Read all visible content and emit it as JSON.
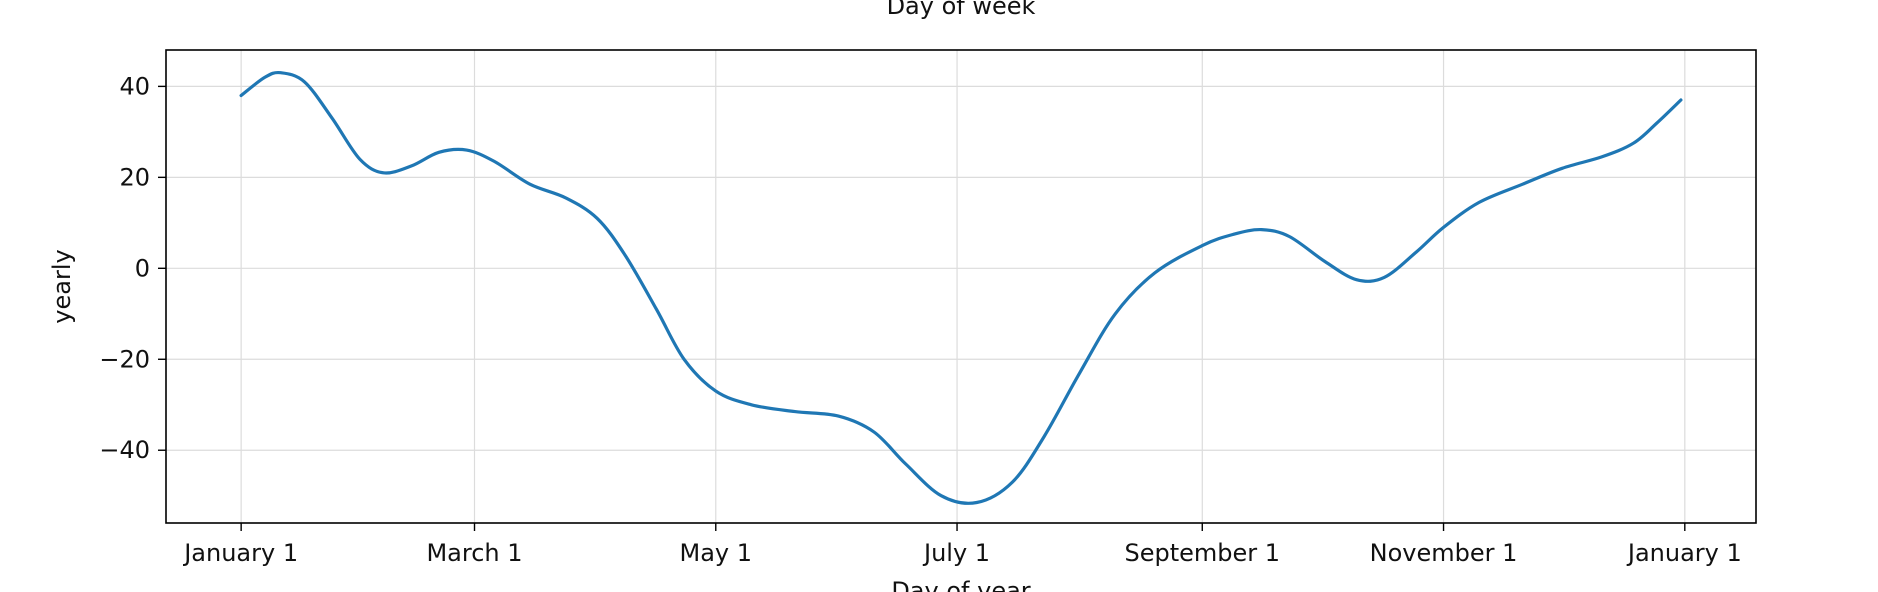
{
  "chart_data": {
    "type": "line",
    "title": "Day of week",
    "xlabel": "Day of year",
    "ylabel": "yearly",
    "ylim": [
      -56,
      48
    ],
    "xlim": [
      "2017-12-13",
      "2019-01-19"
    ],
    "grid": true,
    "x_ticks": [
      {
        "date": "2018-01-01",
        "label": "January 1"
      },
      {
        "date": "2018-03-01",
        "label": "March 1"
      },
      {
        "date": "2018-05-01",
        "label": "May 1"
      },
      {
        "date": "2018-07-01",
        "label": "July 1"
      },
      {
        "date": "2018-09-01",
        "label": "September 1"
      },
      {
        "date": "2018-11-01",
        "label": "November 1"
      },
      {
        "date": "2019-01-01",
        "label": "January 1"
      }
    ],
    "y_ticks": [
      {
        "value": 40,
        "label": "40"
      },
      {
        "value": 20,
        "label": "20"
      },
      {
        "value": 0,
        "label": "0"
      },
      {
        "value": -20,
        "label": "−20"
      },
      {
        "value": -40,
        "label": "−40"
      }
    ],
    "series": [
      {
        "color": "#1f77b4",
        "points": [
          {
            "x": "2018-01-01",
            "y": 38.0
          },
          {
            "x": "2018-01-07",
            "y": 42.0
          },
          {
            "x": "2018-01-11",
            "y": 43.0
          },
          {
            "x": "2018-01-17",
            "y": 41.0
          },
          {
            "x": "2018-01-24",
            "y": 33.0
          },
          {
            "x": "2018-01-31",
            "y": 24.0
          },
          {
            "x": "2018-02-06",
            "y": 21.0
          },
          {
            "x": "2018-02-13",
            "y": 22.5
          },
          {
            "x": "2018-02-20",
            "y": 25.5
          },
          {
            "x": "2018-02-27",
            "y": 26.0
          },
          {
            "x": "2018-03-06",
            "y": 23.5
          },
          {
            "x": "2018-03-15",
            "y": 18.5
          },
          {
            "x": "2018-03-24",
            "y": 15.5
          },
          {
            "x": "2018-04-01",
            "y": 11.0
          },
          {
            "x": "2018-04-08",
            "y": 3.0
          },
          {
            "x": "2018-04-16",
            "y": -9.0
          },
          {
            "x": "2018-04-23",
            "y": -20.0
          },
          {
            "x": "2018-05-01",
            "y": -27.0
          },
          {
            "x": "2018-05-10",
            "y": -30.0
          },
          {
            "x": "2018-05-21",
            "y": -31.5
          },
          {
            "x": "2018-06-01",
            "y": -32.5
          },
          {
            "x": "2018-06-10",
            "y": -36.0
          },
          {
            "x": "2018-06-18",
            "y": -43.0
          },
          {
            "x": "2018-06-27",
            "y": -50.0
          },
          {
            "x": "2018-07-06",
            "y": -51.5
          },
          {
            "x": "2018-07-15",
            "y": -47.0
          },
          {
            "x": "2018-07-23",
            "y": -37.0
          },
          {
            "x": "2018-08-01",
            "y": -23.0
          },
          {
            "x": "2018-08-10",
            "y": -10.0
          },
          {
            "x": "2018-08-20",
            "y": -1.0
          },
          {
            "x": "2018-09-01",
            "y": 5.0
          },
          {
            "x": "2018-09-09",
            "y": 7.5
          },
          {
            "x": "2018-09-16",
            "y": 8.5
          },
          {
            "x": "2018-09-23",
            "y": 7.0
          },
          {
            "x": "2018-10-02",
            "y": 1.5
          },
          {
            "x": "2018-10-10",
            "y": -2.5
          },
          {
            "x": "2018-10-17",
            "y": -2.0
          },
          {
            "x": "2018-10-25",
            "y": 3.5
          },
          {
            "x": "2018-11-01",
            "y": 9.0
          },
          {
            "x": "2018-11-10",
            "y": 14.5
          },
          {
            "x": "2018-11-21",
            "y": 18.5
          },
          {
            "x": "2018-12-01",
            "y": 22.0
          },
          {
            "x": "2018-12-11",
            "y": 24.5
          },
          {
            "x": "2018-12-19",
            "y": 27.5
          },
          {
            "x": "2018-12-25",
            "y": 32.0
          },
          {
            "x": "2018-12-31",
            "y": 37.0
          }
        ]
      }
    ]
  }
}
